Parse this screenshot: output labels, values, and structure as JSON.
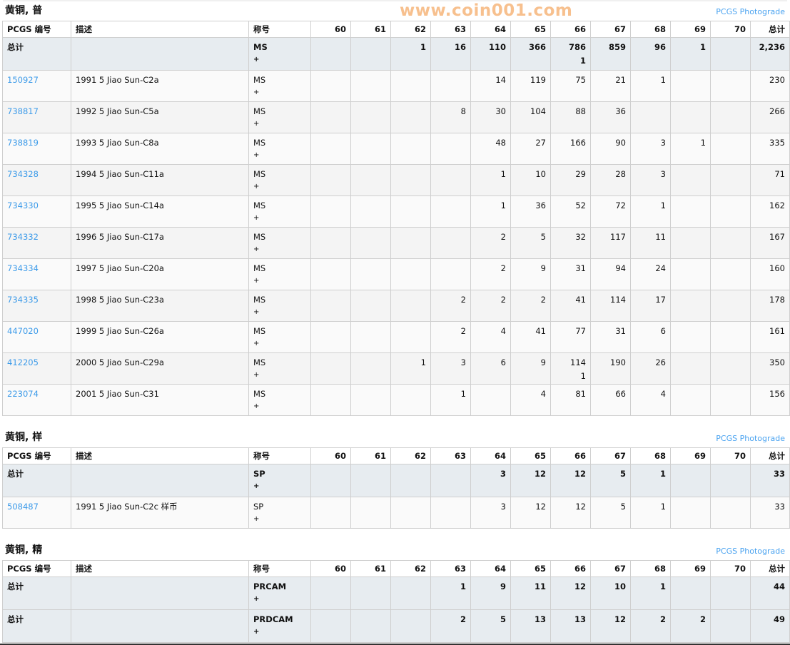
{
  "columns": {
    "pcgs_no": "PCGS 编号",
    "description": "描述",
    "designation": "称号",
    "grades": [
      "60",
      "61",
      "62",
      "63",
      "64",
      "65",
      "66",
      "67",
      "68",
      "69",
      "70"
    ],
    "total": "总计"
  },
  "photograde_label": "PCGS Photograde",
  "sections": [
    {
      "title": "黄铜, 普",
      "totals": [
        {
          "label": "总计",
          "designation": "MS",
          "plus": "+",
          "cells": [
            "",
            "",
            "1",
            "16",
            "110",
            "366",
            "786\n1",
            "859",
            "96",
            "1",
            ""
          ],
          "total": "2,236"
        }
      ],
      "rows": [
        {
          "id": "150927",
          "desc": "1991 5 Jiao Sun-C2a",
          "designation": "MS",
          "plus": "+",
          "cells": [
            "",
            "",
            "",
            "",
            "14",
            "119",
            "75",
            "21",
            "1",
            "",
            ""
          ],
          "total": "230"
        },
        {
          "id": "738817",
          "desc": "1992 5 Jiao Sun-C5a",
          "designation": "MS",
          "plus": "+",
          "cells": [
            "",
            "",
            "",
            "8",
            "30",
            "104",
            "88",
            "36",
            "",
            "",
            ""
          ],
          "total": "266"
        },
        {
          "id": "738819",
          "desc": "1993 5 Jiao Sun-C8a",
          "designation": "MS",
          "plus": "+",
          "cells": [
            "",
            "",
            "",
            "",
            "48",
            "27",
            "166",
            "90",
            "3",
            "1",
            ""
          ],
          "total": "335"
        },
        {
          "id": "734328",
          "desc": "1994 5 Jiao Sun-C11a",
          "designation": "MS",
          "plus": "+",
          "cells": [
            "",
            "",
            "",
            "",
            "1",
            "10",
            "29",
            "28",
            "3",
            "",
            ""
          ],
          "total": "71"
        },
        {
          "id": "734330",
          "desc": "1995 5 Jiao Sun-C14a",
          "designation": "MS",
          "plus": "+",
          "cells": [
            "",
            "",
            "",
            "",
            "1",
            "36",
            "52",
            "72",
            "1",
            "",
            ""
          ],
          "total": "162"
        },
        {
          "id": "734332",
          "desc": "1996 5 Jiao Sun-C17a",
          "designation": "MS",
          "plus": "+",
          "cells": [
            "",
            "",
            "",
            "",
            "2",
            "5",
            "32",
            "117",
            "11",
            "",
            ""
          ],
          "total": "167"
        },
        {
          "id": "734334",
          "desc": "1997 5 Jiao Sun-C20a",
          "designation": "MS",
          "plus": "+",
          "cells": [
            "",
            "",
            "",
            "",
            "2",
            "9",
            "31",
            "94",
            "24",
            "",
            ""
          ],
          "total": "160"
        },
        {
          "id": "734335",
          "desc": "1998 5 Jiao Sun-C23a",
          "designation": "MS",
          "plus": "+",
          "cells": [
            "",
            "",
            "",
            "2",
            "2",
            "2",
            "41",
            "114",
            "17",
            "",
            ""
          ],
          "total": "178"
        },
        {
          "id": "447020",
          "desc": "1999 5 Jiao Sun-C26a",
          "designation": "MS",
          "plus": "+",
          "cells": [
            "",
            "",
            "",
            "2",
            "4",
            "41",
            "77",
            "31",
            "6",
            "",
            ""
          ],
          "total": "161"
        },
        {
          "id": "412205",
          "desc": "2000 5 Jiao Sun-C29a",
          "designation": "MS",
          "plus": "+",
          "cells": [
            "",
            "",
            "1",
            "3",
            "6",
            "9",
            "114\n1",
            "190",
            "26",
            "",
            ""
          ],
          "total": "350"
        },
        {
          "id": "223074",
          "desc": "2001 5 Jiao Sun-C31",
          "designation": "MS",
          "plus": "+",
          "cells": [
            "",
            "",
            "",
            "1",
            "",
            "4",
            "81",
            "66",
            "4",
            "",
            ""
          ],
          "total": "156"
        }
      ]
    },
    {
      "title": "黄铜, 样",
      "totals": [
        {
          "label": "总计",
          "designation": "SP",
          "plus": "+",
          "cells": [
            "",
            "",
            "",
            "",
            "3",
            "12",
            "12",
            "5",
            "1",
            "",
            ""
          ],
          "total": "33"
        }
      ],
      "rows": [
        {
          "id": "508487",
          "desc": "1991 5 Jiao Sun-C2c 样币",
          "designation": "SP",
          "plus": "+",
          "cells": [
            "",
            "",
            "",
            "",
            "3",
            "12",
            "12",
            "5",
            "1",
            "",
            ""
          ],
          "total": "33"
        }
      ]
    },
    {
      "title": "黄铜, 精",
      "totals": [
        {
          "label": "总计",
          "designation": "PRCAM",
          "plus": "+",
          "cells": [
            "",
            "",
            "",
            "1",
            "9",
            "11",
            "12",
            "10",
            "1",
            "",
            ""
          ],
          "total": "44"
        },
        {
          "label": "总计",
          "designation": "PRDCAM",
          "plus": "+",
          "cells": [
            "",
            "",
            "",
            "2",
            "5",
            "13",
            "13",
            "12",
            "2",
            "2",
            ""
          ],
          "total": "49"
        }
      ],
      "rows": []
    }
  ],
  "watermark": "www.coin001.com"
}
